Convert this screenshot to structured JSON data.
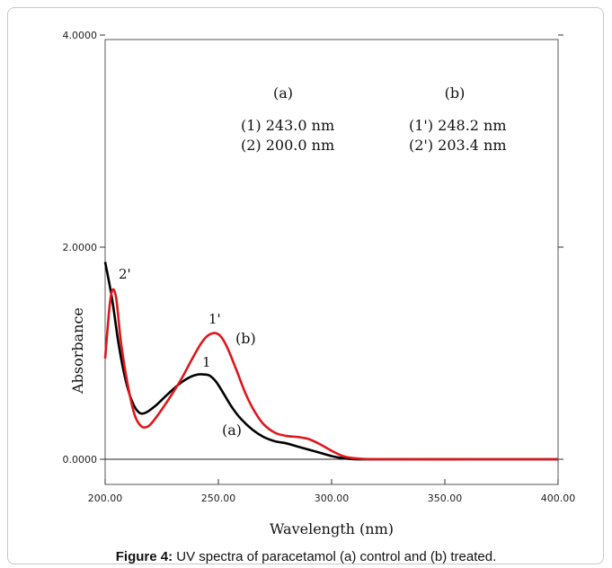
{
  "caption": {
    "label": "Figure 4:",
    "text": " UV spectra of paracetamol (a) control and (b) treated."
  },
  "chart_data": {
    "type": "line",
    "xlabel": "Wavelength (nm)",
    "ylabel": "Absorbance",
    "xlim": [
      200,
      400
    ],
    "ylim": [
      0,
      2
    ],
    "x_ticks": [
      "200.00",
      "250.00",
      "300.00",
      "350.00",
      "400.00"
    ],
    "y_ticks": [
      "0.0000",
      "2.0000",
      "4.0000"
    ],
    "y_tick_values": [
      0,
      2,
      4
    ],
    "grid": false,
    "annotations": {
      "col_a_title": "(a)",
      "col_a_line1": "(1)  243.0 nm",
      "col_a_line2": "(2)  200.0 nm",
      "col_b_title": "(b)",
      "col_b_line1": "(1') 248.2 nm",
      "col_b_line2": "(2') 203.4 nm",
      "peak_1": "1",
      "peak_1p": "1'",
      "peak_2p": "2'",
      "curve_a": "(a)",
      "curve_b": "(b)"
    },
    "series": [
      {
        "name": "(a)",
        "color": "#000000",
        "x": [
          200,
          203,
          206,
          209,
          212,
          215,
          218,
          222,
          226,
          230,
          234,
          238,
          241,
          243,
          246,
          249,
          252,
          256,
          260,
          265,
          270,
          275,
          280,
          285,
          290,
          295,
          300,
          305,
          310,
          320,
          360,
          400
        ],
        "y": [
          1.86,
          1.52,
          1.08,
          0.75,
          0.54,
          0.44,
          0.44,
          0.5,
          0.58,
          0.66,
          0.73,
          0.78,
          0.8,
          0.8,
          0.79,
          0.73,
          0.63,
          0.49,
          0.38,
          0.28,
          0.21,
          0.17,
          0.15,
          0.12,
          0.09,
          0.06,
          0.03,
          0.01,
          0.0,
          0.0,
          0.0,
          0.0
        ]
      },
      {
        "name": "(b)",
        "color": "#e0161b",
        "x": [
          200,
          202,
          203.4,
          205,
          207,
          210,
          213,
          216,
          219,
          222,
          226,
          230,
          234,
          238,
          242,
          245,
          248.2,
          251,
          254,
          258,
          262,
          266,
          270,
          275,
          280,
          285,
          290,
          295,
          300,
          305,
          310,
          320,
          360,
          400
        ],
        "y": [
          0.95,
          1.45,
          1.6,
          1.5,
          1.1,
          0.7,
          0.42,
          0.31,
          0.31,
          0.38,
          0.5,
          0.63,
          0.77,
          0.93,
          1.08,
          1.16,
          1.19,
          1.16,
          1.05,
          0.84,
          0.62,
          0.45,
          0.33,
          0.25,
          0.22,
          0.21,
          0.19,
          0.14,
          0.08,
          0.03,
          0.01,
          0.0,
          0.0,
          0.0
        ]
      }
    ]
  }
}
